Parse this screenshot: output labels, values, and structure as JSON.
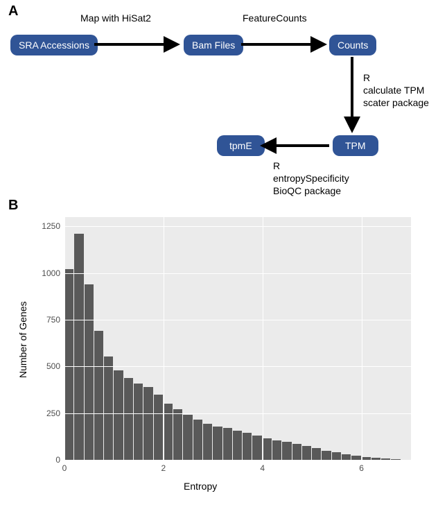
{
  "panelA": {
    "label": "A",
    "nodes": {
      "sra": "SRA Accessions",
      "bam": "Bam Files",
      "counts": "Counts",
      "tpm": "TPM",
      "tpme": "tpmE"
    },
    "edges": {
      "e1": "Map with HiSat2",
      "e2": "FeatureCounts",
      "e3_l1": "R",
      "e3_l2": "calculate TPM",
      "e3_l3": "scater package",
      "e4_l1": "R",
      "e4_l2": "entropySpecificity",
      "e4_l3": "BioQC package"
    },
    "node_color": "#305496",
    "node_text_color": "#ffffff"
  },
  "panelB": {
    "label": "B",
    "chart": {
      "type": "histogram",
      "xlabel": "Entropy",
      "ylabel": "Number of Genes",
      "background_color": "#ebebeb",
      "grid_color": "#ffffff",
      "bar_color": "#595959",
      "xlim": [
        0,
        7
      ],
      "ylim": [
        0,
        1300
      ],
      "xticks": [
        0,
        2,
        4,
        6
      ],
      "yticks": [
        0,
        250,
        500,
        750,
        1000,
        1250
      ],
      "bin_width": 0.2,
      "bin_left_edges": [
        0.0,
        0.2,
        0.4,
        0.6,
        0.8,
        1.0,
        1.2,
        1.4,
        1.6,
        1.8,
        2.0,
        2.2,
        2.4,
        2.6,
        2.8,
        3.0,
        3.2,
        3.4,
        3.6,
        3.8,
        4.0,
        4.2,
        4.4,
        4.6,
        4.8,
        5.0,
        5.2,
        5.4,
        5.6,
        5.8,
        6.0,
        6.2,
        6.4,
        6.6
      ],
      "counts": [
        1020,
        1210,
        940,
        690,
        555,
        480,
        440,
        410,
        390,
        350,
        300,
        270,
        240,
        215,
        195,
        180,
        170,
        155,
        145,
        130,
        115,
        105,
        95,
        85,
        75,
        62,
        50,
        40,
        30,
        22,
        15,
        10,
        6,
        3
      ],
      "label_fontsize": 14,
      "tick_fontsize": 12
    }
  }
}
